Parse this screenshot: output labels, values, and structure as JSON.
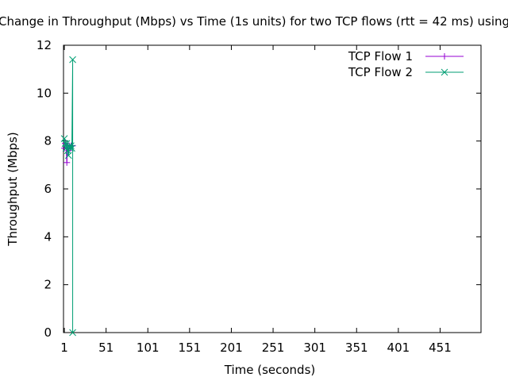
{
  "chart_data": {
    "type": "line",
    "title": "Change in Throughput (Mbps) vs Time (1s units) for two TCP flows (rtt = 42 ms) using",
    "xlabel": "Time (seconds)",
    "ylabel": "Throughput (Mbps)",
    "xlim": [
      0,
      500
    ],
    "ylim": [
      0,
      12
    ],
    "x_ticks": [
      1,
      51,
      101,
      151,
      201,
      251,
      301,
      351,
      401,
      451
    ],
    "x_tick_labels": [
      "1",
      "51",
      "101",
      "151",
      "201",
      "251",
      "301",
      "351",
      "401",
      "451"
    ],
    "y_ticks": [
      0,
      2,
      4,
      6,
      8,
      10,
      12
    ],
    "y_tick_labels": [
      "0",
      "2",
      "4",
      "6",
      "8",
      "10",
      "12"
    ],
    "grid": false,
    "legend_position": "top-right",
    "series": [
      {
        "name": "TCP Flow 1",
        "color": "#9400d3",
        "marker": "plus",
        "x": [
          1,
          2,
          3,
          4,
          5,
          6,
          7,
          8,
          9,
          10,
          11
        ],
        "y": [
          7.7,
          7.9,
          7.8,
          7.1,
          7.8,
          7.6,
          7.8,
          7.7,
          7.8,
          7.8,
          7.8
        ]
      },
      {
        "name": "TCP Flow 2",
        "color": "#009e73",
        "marker": "x",
        "x": [
          1,
          2,
          3,
          4,
          5,
          6,
          7,
          8,
          9,
          10,
          11,
          11
        ],
        "y": [
          8.1,
          7.9,
          7.7,
          7.9,
          7.6,
          7.4,
          7.8,
          7.7,
          7.8,
          7.7,
          11.4,
          0.0
        ]
      }
    ]
  }
}
